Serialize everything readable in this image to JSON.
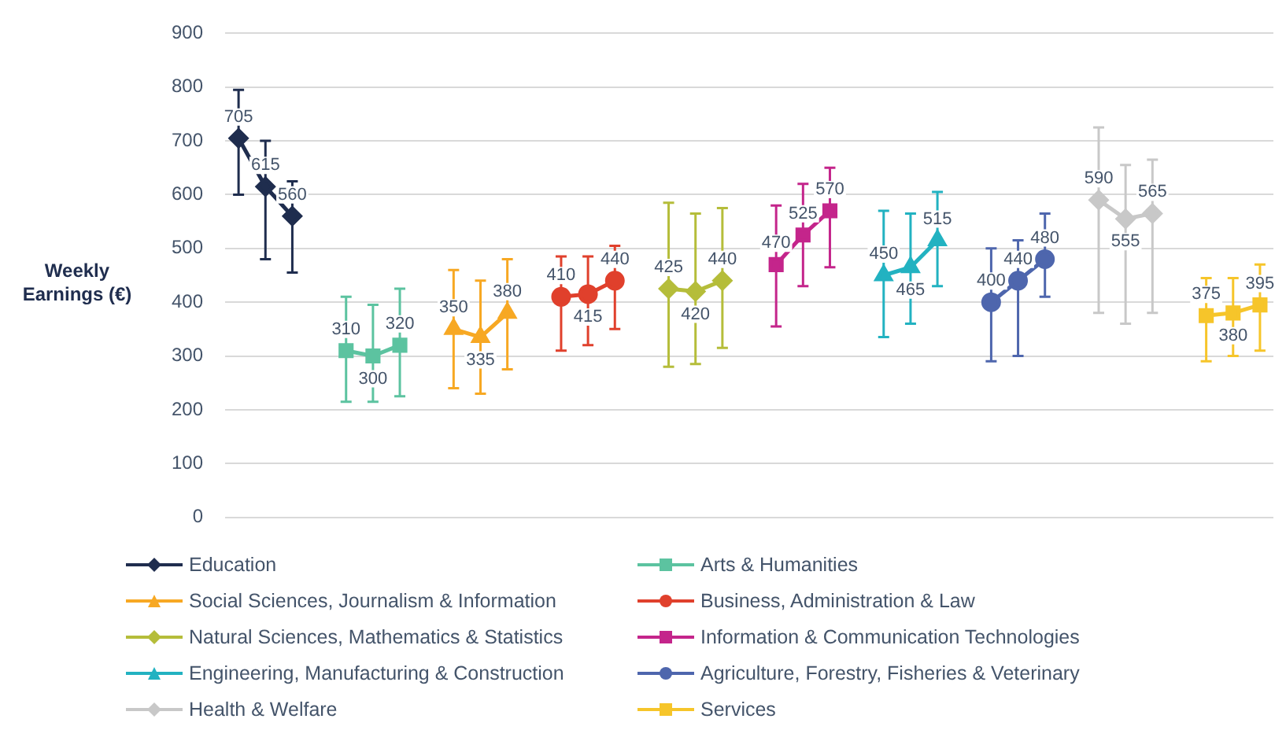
{
  "chart_data": {
    "type": "line",
    "ylabel": "Weekly Earnings (€)",
    "categories": [
      null,
      null,
      null,
      null,
      null,
      null,
      null,
      null,
      null,
      null,
      null,
      null,
      null,
      null,
      null,
      null,
      null,
      null,
      null,
      null,
      null,
      null,
      null,
      null,
      null,
      null,
      null,
      null,
      null,
      null,
      null,
      null,
      null,
      null,
      null,
      null,
      null,
      null,
      null
    ],
    "ylim": [
      0,
      900
    ],
    "yticks": [
      0,
      100,
      200,
      300,
      400,
      500,
      600,
      700,
      800,
      900
    ],
    "grid": "y",
    "legend": "bottom",
    "tick_labels": "y",
    "data_labels": true,
    "line_style": "solid",
    "series": [
      {
        "name": "Education",
        "color": "#1f2d4e",
        "marker": "diamond",
        "values": [
          705,
          615,
          560,
          null,
          null,
          null,
          null,
          null,
          null,
          null,
          null,
          null,
          null,
          null,
          null,
          null,
          null,
          null,
          null,
          null,
          null,
          null,
          null,
          null,
          null,
          null,
          null,
          null,
          null,
          null,
          null,
          null,
          null,
          null,
          null,
          null,
          null,
          null,
          null
        ],
        "errors": [
          [
            600,
            795
          ],
          [
            480,
            700
          ],
          [
            455,
            625
          ],
          null,
          null,
          null,
          null,
          null,
          null,
          null,
          null,
          null,
          null,
          null,
          null,
          null,
          null,
          null,
          null,
          null,
          null,
          null,
          null,
          null,
          null,
          null,
          null,
          null,
          null,
          null,
          null,
          null,
          null,
          null,
          null,
          null,
          null,
          null,
          null
        ]
      },
      {
        "name": "Arts & Humanities",
        "color": "#5cc3a0",
        "marker": "square",
        "values": [
          null,
          null,
          null,
          null,
          310,
          300,
          320,
          null,
          null,
          null,
          null,
          null,
          null,
          null,
          null,
          null,
          null,
          null,
          null,
          null,
          null,
          null,
          null,
          null,
          null,
          null,
          null,
          null,
          null,
          null,
          null,
          null,
          null,
          null,
          null,
          null,
          null,
          null,
          null
        ],
        "errors": [
          null,
          null,
          null,
          null,
          [
            215,
            410
          ],
          [
            215,
            395
          ],
          [
            225,
            425
          ],
          null,
          null,
          null,
          null,
          null,
          null,
          null,
          null,
          null,
          null,
          null,
          null,
          null,
          null,
          null,
          null,
          null,
          null,
          null,
          null,
          null,
          null,
          null,
          null,
          null,
          null,
          null,
          null,
          null,
          null,
          null,
          null
        ]
      },
      {
        "name": "Social Sciences, Journalism & Information",
        "color": "#f7a823",
        "marker": "triangle",
        "values": [
          null,
          null,
          null,
          null,
          null,
          null,
          null,
          null,
          350,
          335,
          380,
          null,
          null,
          null,
          null,
          null,
          null,
          null,
          null,
          null,
          null,
          null,
          null,
          null,
          null,
          null,
          null,
          null,
          null,
          null,
          null,
          null,
          null,
          null,
          null,
          null,
          null,
          null,
          null
        ],
        "errors": [
          null,
          null,
          null,
          null,
          null,
          null,
          null,
          null,
          [
            240,
            460
          ],
          [
            230,
            440
          ],
          [
            275,
            480
          ],
          null,
          null,
          null,
          null,
          null,
          null,
          null,
          null,
          null,
          null,
          null,
          null,
          null,
          null,
          null,
          null,
          null,
          null,
          null,
          null,
          null,
          null,
          null,
          null,
          null,
          null,
          null,
          null
        ]
      },
      {
        "name": "Business, Administration & Law",
        "color": "#e0402c",
        "marker": "circle",
        "values": [
          null,
          null,
          null,
          null,
          null,
          null,
          null,
          null,
          null,
          null,
          null,
          null,
          410,
          415,
          440,
          null,
          null,
          null,
          null,
          null,
          null,
          null,
          null,
          null,
          null,
          null,
          null,
          null,
          null,
          null,
          null,
          null,
          null,
          null,
          null,
          null,
          null,
          null,
          null
        ],
        "errors": [
          null,
          null,
          null,
          null,
          null,
          null,
          null,
          null,
          null,
          null,
          null,
          null,
          [
            310,
            485
          ],
          [
            320,
            485
          ],
          [
            350,
            505
          ],
          null,
          null,
          null,
          null,
          null,
          null,
          null,
          null,
          null,
          null,
          null,
          null,
          null,
          null,
          null,
          null,
          null,
          null,
          null,
          null,
          null,
          null,
          null,
          null
        ]
      },
      {
        "name": "Natural Sciences, Mathematics & Statistics",
        "color": "#b5bd3a",
        "marker": "diamond",
        "values": [
          null,
          null,
          null,
          null,
          null,
          null,
          null,
          null,
          null,
          null,
          null,
          null,
          null,
          null,
          null,
          null,
          425,
          420,
          440,
          null,
          null,
          null,
          null,
          null,
          null,
          null,
          null,
          null,
          null,
          null,
          null,
          null,
          null,
          null,
          null,
          null,
          null,
          null,
          null
        ],
        "errors": [
          null,
          null,
          null,
          null,
          null,
          null,
          null,
          null,
          null,
          null,
          null,
          null,
          null,
          null,
          null,
          null,
          [
            280,
            585
          ],
          [
            285,
            565
          ],
          [
            315,
            575
          ],
          null,
          null,
          null,
          null,
          null,
          null,
          null,
          null,
          null,
          null,
          null,
          null,
          null,
          null,
          null,
          null,
          null,
          null,
          null,
          null
        ]
      },
      {
        "name": "Information & Communication Technologies",
        "color": "#c4258b",
        "marker": "square",
        "values": [
          null,
          null,
          null,
          null,
          null,
          null,
          null,
          null,
          null,
          null,
          null,
          null,
          null,
          null,
          null,
          null,
          null,
          null,
          null,
          null,
          470,
          525,
          570,
          null,
          null,
          null,
          null,
          null,
          null,
          null,
          null,
          null,
          null,
          null,
          null,
          null,
          null,
          null,
          null
        ],
        "errors": [
          null,
          null,
          null,
          null,
          null,
          null,
          null,
          null,
          null,
          null,
          null,
          null,
          null,
          null,
          null,
          null,
          null,
          null,
          null,
          null,
          [
            355,
            580
          ],
          [
            430,
            620
          ],
          [
            465,
            650
          ],
          null,
          null,
          null,
          null,
          null,
          null,
          null,
          null,
          null,
          null,
          null,
          null,
          null,
          null,
          null,
          null
        ]
      },
      {
        "name": "Engineering, Manufacturing & Construction",
        "color": "#22b2c1",
        "marker": "triangle",
        "values": [
          null,
          null,
          null,
          null,
          null,
          null,
          null,
          null,
          null,
          null,
          null,
          null,
          null,
          null,
          null,
          null,
          null,
          null,
          null,
          null,
          null,
          null,
          null,
          null,
          450,
          465,
          515,
          null,
          null,
          null,
          null,
          null,
          null,
          null,
          null,
          null,
          null,
          null,
          null
        ],
        "errors": [
          null,
          null,
          null,
          null,
          null,
          null,
          null,
          null,
          null,
          null,
          null,
          null,
          null,
          null,
          null,
          null,
          null,
          null,
          null,
          null,
          null,
          null,
          null,
          null,
          [
            335,
            570
          ],
          [
            360,
            565
          ],
          [
            430,
            605
          ],
          null,
          null,
          null,
          null,
          null,
          null,
          null,
          null,
          null,
          null,
          null,
          null
        ]
      },
      {
        "name": "Agriculture, Forestry, Fisheries & Veterinary",
        "color": "#4e66ad",
        "marker": "circle",
        "values": [
          null,
          null,
          null,
          null,
          null,
          null,
          null,
          null,
          null,
          null,
          null,
          null,
          null,
          null,
          null,
          null,
          null,
          null,
          null,
          null,
          null,
          null,
          null,
          null,
          null,
          null,
          null,
          null,
          400,
          440,
          480,
          null,
          null,
          null,
          null,
          null,
          null,
          null,
          null
        ],
        "errors": [
          null,
          null,
          null,
          null,
          null,
          null,
          null,
          null,
          null,
          null,
          null,
          null,
          null,
          null,
          null,
          null,
          null,
          null,
          null,
          null,
          null,
          null,
          null,
          null,
          null,
          null,
          null,
          null,
          [
            290,
            500
          ],
          [
            300,
            515
          ],
          [
            410,
            565
          ],
          null,
          null,
          null,
          null,
          null,
          null,
          null,
          null
        ]
      },
      {
        "name": "Health & Welfare",
        "color": "#c8c8c8",
        "marker": "diamond",
        "values": [
          null,
          null,
          null,
          null,
          null,
          null,
          null,
          null,
          null,
          null,
          null,
          null,
          null,
          null,
          null,
          null,
          null,
          null,
          null,
          null,
          null,
          null,
          null,
          null,
          null,
          null,
          null,
          null,
          null,
          null,
          null,
          null,
          590,
          555,
          565,
          null,
          null,
          null,
          null
        ],
        "errors": [
          null,
          null,
          null,
          null,
          null,
          null,
          null,
          null,
          null,
          null,
          null,
          null,
          null,
          null,
          null,
          null,
          null,
          null,
          null,
          null,
          null,
          null,
          null,
          null,
          null,
          null,
          null,
          null,
          null,
          null,
          null,
          null,
          [
            380,
            725
          ],
          [
            360,
            655
          ],
          [
            380,
            665
          ],
          null,
          null,
          null,
          null
        ]
      },
      {
        "name": "Services",
        "color": "#f6c52a",
        "marker": "square",
        "values": [
          null,
          null,
          null,
          null,
          null,
          null,
          null,
          null,
          null,
          null,
          null,
          null,
          null,
          null,
          null,
          null,
          null,
          null,
          null,
          null,
          null,
          null,
          null,
          null,
          null,
          null,
          null,
          null,
          null,
          null,
          null,
          null,
          null,
          null,
          null,
          null,
          375,
          380,
          395
        ],
        "errors": [
          null,
          null,
          null,
          null,
          null,
          null,
          null,
          null,
          null,
          null,
          null,
          null,
          null,
          null,
          null,
          null,
          null,
          null,
          null,
          null,
          null,
          null,
          null,
          null,
          null,
          null,
          null,
          null,
          null,
          null,
          null,
          null,
          null,
          null,
          null,
          null,
          [
            290,
            445
          ],
          [
            300,
            445
          ],
          [
            310,
            470
          ]
        ]
      }
    ]
  }
}
